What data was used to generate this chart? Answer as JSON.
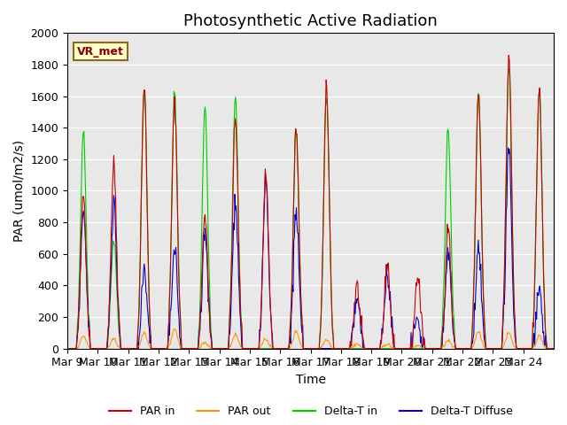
{
  "title": "Photosynthetic Active Radiation",
  "ylabel": "PAR (umol/m2/s)",
  "xlabel": "Time",
  "ylim": [
    0,
    2000
  ],
  "annotation": "VR_met",
  "legend": [
    "PAR in",
    "PAR out",
    "Delta-T in",
    "Delta-T Diffuse"
  ],
  "colors": {
    "PAR in": "#cc0000",
    "PAR out": "#ff9900",
    "Delta-T in": "#00cc00",
    "Delta-T Diffuse": "#0000cc"
  },
  "xtick_labels": [
    "Mar 9",
    "Mar 10",
    "Mar 11",
    "Mar 12",
    "Mar 13",
    "Mar 14",
    "Mar 15",
    "Mar 16",
    "Mar 17",
    "Mar 18",
    "Mar 19",
    "Mar 20",
    "Mar 21",
    "Mar 22",
    "Mar 23",
    "Mar 24"
  ],
  "background_color": "#e8e8e8",
  "title_fontsize": 13,
  "axis_fontsize": 10,
  "tick_fontsize": 9,
  "par_in_peaks": [
    980,
    1170,
    1660,
    1550,
    860,
    1450,
    1110,
    1400,
    1640,
    400,
    540,
    460,
    780,
    1630,
    1830,
    1650
  ],
  "par_out_peaks": [
    80,
    60,
    100,
    120,
    40,
    90,
    60,
    110,
    60,
    30,
    30,
    20,
    50,
    110,
    100,
    80
  ],
  "delta_t_in_peaks": [
    1380,
    700,
    1650,
    1620,
    1520,
    1600,
    0,
    1380,
    1600,
    0,
    0,
    0,
    1400,
    1600,
    1780,
    1660
  ],
  "delta_t_diff_peaks": [
    850,
    940,
    480,
    620,
    720,
    950,
    1050,
    870,
    0,
    320,
    500,
    180,
    630,
    640,
    1260,
    380
  ]
}
